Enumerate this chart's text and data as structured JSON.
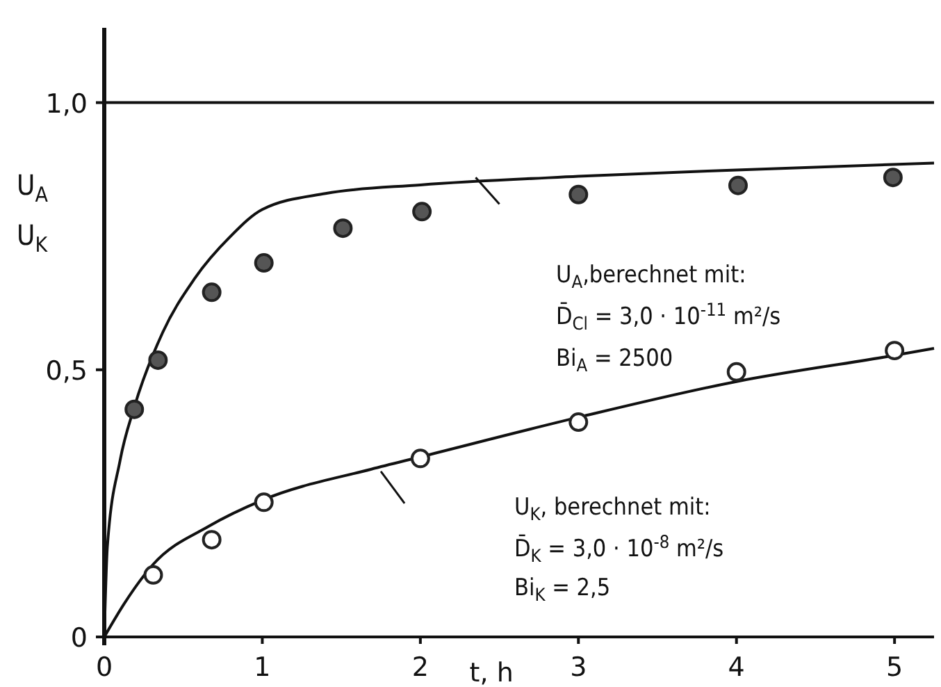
{
  "chart_data": {
    "type": "line",
    "xlabel": "t, h",
    "ylabel": "U$_{A}$\nU$_{K}$",
    "xlim": [
      0,
      5.25
    ],
    "xticks": [
      0,
      1,
      2,
      3,
      4,
      5
    ],
    "ylim": [
      0,
      1.14
    ],
    "yticks": [
      0,
      {
        "value": 0.5,
        "label": "0,5"
      },
      {
        "value": 1.0,
        "label": "1,0"
      }
    ],
    "grid": false,
    "ref_lines": [
      {
        "axis": "y",
        "value": 1.0,
        "label": null
      }
    ],
    "series": [
      {
        "color": "#111111",
        "line_style": "solid",
        "x": [
          0,
          0.02,
          0.1,
          0.19,
          0.37,
          0.57,
          0.8,
          1.0,
          1.4,
          2,
          3,
          4,
          5.25
        ],
        "values": [
          0,
          0.17,
          0.33,
          0.43,
          0.57,
          0.67,
          0.75,
          0.8,
          0.83,
          0.846,
          0.862,
          0.874,
          0.887
        ]
      },
      {
        "type": "scatter",
        "color": "#555555",
        "marker": "circle",
        "x": [
          0.19,
          0.34,
          0.68,
          1.01,
          1.51,
          2.01,
          3.0,
          4.01,
          4.99
        ],
        "values": [
          0.426,
          0.518,
          0.645,
          0.7,
          0.765,
          0.796,
          0.828,
          0.845,
          0.86
        ]
      },
      {
        "color": "#111111",
        "line_style": "solid",
        "x": [
          0,
          0.13,
          0.31,
          0.66,
          1.0,
          1.69,
          2,
          3,
          4,
          5,
          5.25
        ],
        "values": [
          0,
          0.064,
          0.136,
          0.207,
          0.256,
          0.314,
          0.337,
          0.411,
          0.478,
          0.527,
          0.54
        ]
      },
      {
        "type": "scatter",
        "color": "#ffffff",
        "marker": "circle",
        "x": [
          0.31,
          0.68,
          1.01,
          2.0,
          3.0,
          4.0,
          5.0
        ],
        "values": [
          0.116,
          0.182,
          0.252,
          0.334,
          0.402,
          0.496,
          0.536
        ]
      }
    ],
    "annotations": [
      "U$_{A}$,berechnet mit:",
      "D̄$_{Cl}$ = 3,0 · 10$^{-11}$ m²/s",
      "Bi$_{A}$ = 2500",
      "U$_{K}$, berechnet mit:",
      "D̄$_{K}$ = 3,0 · 10$^{-8}$ m²/s",
      "Bi$_{K}$ = 2,5"
    ]
  }
}
